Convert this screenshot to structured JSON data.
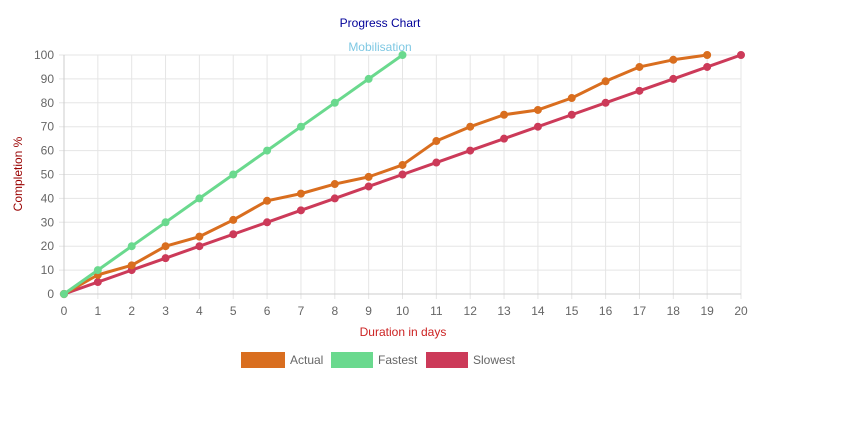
{
  "chart_data": {
    "type": "line",
    "title": "Progress Chart",
    "subtitle": "Mobilisation",
    "xlabel": "Duration in days",
    "ylabel": "Completion %",
    "xlim": [
      0,
      20
    ],
    "ylim": [
      0,
      100
    ],
    "x_ticks": [
      0,
      1,
      2,
      3,
      4,
      5,
      6,
      7,
      8,
      9,
      10,
      11,
      12,
      13,
      14,
      15,
      16,
      17,
      18,
      19,
      20
    ],
    "y_ticks": [
      0,
      10,
      20,
      30,
      40,
      50,
      60,
      70,
      80,
      90,
      100
    ],
    "grid": true,
    "legend_position": "bottom",
    "series": [
      {
        "name": "Actual",
        "color": "#d96e1f",
        "x": [
          0,
          1,
          2,
          3,
          4,
          5,
          6,
          7,
          8,
          9,
          10,
          11,
          12,
          13,
          14,
          15,
          16,
          17,
          18,
          19
        ],
        "values": [
          0,
          8,
          12,
          20,
          24,
          31,
          39,
          42,
          46,
          49,
          54,
          64,
          70,
          75,
          77,
          82,
          89,
          95,
          98,
          100
        ]
      },
      {
        "name": "Fastest",
        "color": "#6ad98e",
        "x": [
          0,
          1,
          2,
          3,
          4,
          5,
          6,
          7,
          8,
          9,
          10
        ],
        "values": [
          0,
          10,
          20,
          30,
          40,
          50,
          60,
          70,
          80,
          90,
          100
        ]
      },
      {
        "name": "Slowest",
        "color": "#cc3a59",
        "x": [
          0,
          1,
          2,
          3,
          4,
          5,
          6,
          7,
          8,
          9,
          10,
          11,
          12,
          13,
          14,
          15,
          16,
          17,
          18,
          19,
          20
        ],
        "values": [
          0,
          5,
          10,
          15,
          20,
          25,
          30,
          35,
          40,
          45,
          50,
          55,
          60,
          65,
          70,
          75,
          80,
          85,
          90,
          95,
          100
        ]
      }
    ]
  },
  "colors": {
    "title": "#000099",
    "subtitle": "#7ec8e3",
    "axis_label_x": "#cc2222",
    "axis_label_y": "#990000",
    "grid": "#e5e5e5",
    "tick_text": "#666666"
  }
}
